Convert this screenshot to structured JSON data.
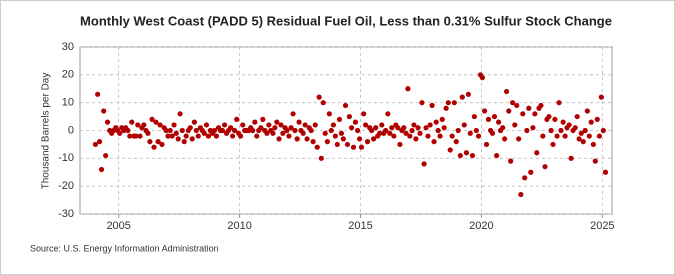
{
  "chart_data": {
    "type": "scatter",
    "title": "Monthly West Coast (PADD 5) Residual Fuel Oil, Less than 0.31% Sulfur Stock Change",
    "y_label": "Thousand Barrels per Day",
    "source": "Source: U.S. Energy Information Administration",
    "color": "#b00000",
    "grid": true,
    "xlim": [
      2003.4,
      2025.4
    ],
    "xticks": [
      2005,
      2010,
      2015,
      2020,
      2025
    ],
    "ylim": [
      -30,
      30
    ],
    "yticks": [
      -30,
      -20,
      -10,
      0,
      10,
      20,
      30
    ],
    "x": [
      2004.04,
      2004.13,
      2004.21,
      2004.29,
      2004.38,
      2004.46,
      2004.54,
      2004.63,
      2004.71,
      2004.79,
      2004.88,
      2004.96,
      2005.04,
      2005.13,
      2005.21,
      2005.29,
      2005.38,
      2005.46,
      2005.54,
      2005.63,
      2005.71,
      2005.79,
      2005.88,
      2005.96,
      2006.04,
      2006.13,
      2006.21,
      2006.29,
      2006.38,
      2006.46,
      2006.54,
      2006.63,
      2006.71,
      2006.79,
      2006.88,
      2006.96,
      2007.04,
      2007.13,
      2007.21,
      2007.29,
      2007.38,
      2007.46,
      2007.54,
      2007.63,
      2007.71,
      2007.79,
      2007.88,
      2007.96,
      2008.04,
      2008.13,
      2008.21,
      2008.29,
      2008.38,
      2008.46,
      2008.54,
      2008.63,
      2008.71,
      2008.79,
      2008.88,
      2008.96,
      2009.04,
      2009.13,
      2009.21,
      2009.29,
      2009.38,
      2009.46,
      2009.54,
      2009.63,
      2009.71,
      2009.79,
      2009.88,
      2009.96,
      2010.04,
      2010.13,
      2010.21,
      2010.29,
      2010.38,
      2010.46,
      2010.54,
      2010.63,
      2010.71,
      2010.79,
      2010.88,
      2010.96,
      2011.04,
      2011.13,
      2011.21,
      2011.29,
      2011.38,
      2011.46,
      2011.54,
      2011.63,
      2011.71,
      2011.79,
      2011.88,
      2011.96,
      2012.04,
      2012.13,
      2012.21,
      2012.29,
      2012.38,
      2012.46,
      2012.54,
      2012.63,
      2012.71,
      2012.79,
      2012.88,
      2012.96,
      2013.04,
      2013.13,
      2013.21,
      2013.29,
      2013.38,
      2013.46,
      2013.54,
      2013.63,
      2013.71,
      2013.79,
      2013.88,
      2013.96,
      2014.04,
      2014.13,
      2014.21,
      2014.29,
      2014.38,
      2014.46,
      2014.54,
      2014.63,
      2014.71,
      2014.79,
      2014.88,
      2014.96,
      2015.04,
      2015.13,
      2015.21,
      2015.29,
      2015.38,
      2015.46,
      2015.54,
      2015.63,
      2015.71,
      2015.79,
      2015.88,
      2015.96,
      2016.04,
      2016.13,
      2016.21,
      2016.29,
      2016.38,
      2016.46,
      2016.54,
      2016.63,
      2016.71,
      2016.79,
      2016.88,
      2016.96,
      2017.04,
      2017.13,
      2017.21,
      2017.29,
      2017.38,
      2017.46,
      2017.54,
      2017.63,
      2017.71,
      2017.79,
      2017.88,
      2017.96,
      2018.04,
      2018.13,
      2018.21,
      2018.29,
      2018.38,
      2018.46,
      2018.54,
      2018.63,
      2018.71,
      2018.79,
      2018.88,
      2018.96,
      2019.04,
      2019.13,
      2019.21,
      2019.29,
      2019.38,
      2019.46,
      2019.54,
      2019.63,
      2019.71,
      2019.79,
      2019.88,
      2019.96,
      2020.04,
      2020.13,
      2020.21,
      2020.29,
      2020.38,
      2020.46,
      2020.54,
      2020.63,
      2020.71,
      2020.79,
      2020.88,
      2020.96,
      2021.04,
      2021.13,
      2021.21,
      2021.29,
      2021.38,
      2021.46,
      2021.54,
      2021.63,
      2021.71,
      2021.79,
      2021.88,
      2021.96,
      2022.04,
      2022.13,
      2022.21,
      2022.29,
      2022.38,
      2022.46,
      2022.54,
      2022.63,
      2022.71,
      2022.79,
      2022.88,
      2022.96,
      2023.04,
      2023.13,
      2023.21,
      2023.29,
      2023.38,
      2023.46,
      2023.54,
      2023.63,
      2023.71,
      2023.79,
      2023.88,
      2023.96,
      2024.04,
      2024.13,
      2024.21,
      2024.29,
      2024.38,
      2024.46,
      2024.54,
      2024.63,
      2024.71,
      2024.79,
      2024.88,
      2024.96,
      2025.04,
      2025.13
    ],
    "values": [
      -5,
      13,
      -4,
      -14,
      7,
      -9,
      3,
      0,
      -1,
      0,
      1,
      0,
      -1,
      1,
      0,
      1,
      0,
      -2,
      3,
      -2,
      -2,
      2,
      -2,
      1,
      2,
      0,
      -1,
      -4,
      4,
      -6,
      3,
      -4,
      2,
      -5,
      1,
      0,
      -2,
      0,
      -2,
      2,
      -1,
      -3,
      6,
      0,
      -4,
      -2,
      0,
      1,
      -3,
      3,
      0,
      -2,
      1,
      0,
      -1,
      2,
      -2,
      0,
      -1,
      0,
      -2,
      1,
      0,
      0,
      2,
      -1,
      0,
      1,
      -2,
      0,
      4,
      -1,
      -2,
      2,
      0,
      0,
      0,
      1,
      0,
      3,
      -2,
      0,
      1,
      4,
      0,
      -1,
      2,
      0,
      -1,
      1,
      3,
      -3,
      2,
      -1,
      1,
      0,
      -2,
      1,
      6,
      0,
      -3,
      3,
      0,
      -1,
      2,
      -3,
      1,
      0,
      -4,
      2,
      -6,
      12,
      -10,
      10,
      -1,
      -4,
      6,
      0,
      2,
      -2,
      -5,
      4,
      -1,
      -3,
      9,
      -5,
      5,
      1,
      -6,
      3,
      0,
      -3,
      -6,
      6,
      2,
      -4,
      1,
      0,
      -3,
      1,
      -2,
      -1,
      2,
      -1,
      0,
      6,
      -1,
      1,
      -2,
      2,
      1,
      -5,
      0,
      1,
      -1,
      15,
      -2,
      0,
      2,
      -3,
      1,
      -1,
      10,
      -12,
      1,
      -2,
      2,
      9,
      -4,
      3,
      0,
      -2,
      4,
      1,
      8,
      10,
      -7,
      -2,
      10,
      -4,
      0,
      -9,
      12,
      2,
      -8,
      13,
      -1,
      -9,
      5,
      0,
      -2,
      20,
      19,
      7,
      -5,
      4,
      0,
      -1,
      5,
      -9,
      3,
      0,
      1,
      -3,
      14,
      7,
      -11,
      10,
      2,
      9,
      -3,
      -23,
      6,
      -17,
      0,
      8,
      -15,
      1,
      6,
      -8,
      8,
      9,
      -2,
      -13,
      4,
      5,
      0,
      -5,
      4,
      -2,
      10,
      0,
      3,
      -2,
      1,
      2,
      -10,
      0,
      1,
      5,
      -3,
      -1,
      -4,
      0,
      7,
      -2,
      3,
      -5,
      -11,
      4,
      -2,
      12,
      0,
      -15
    ]
  }
}
